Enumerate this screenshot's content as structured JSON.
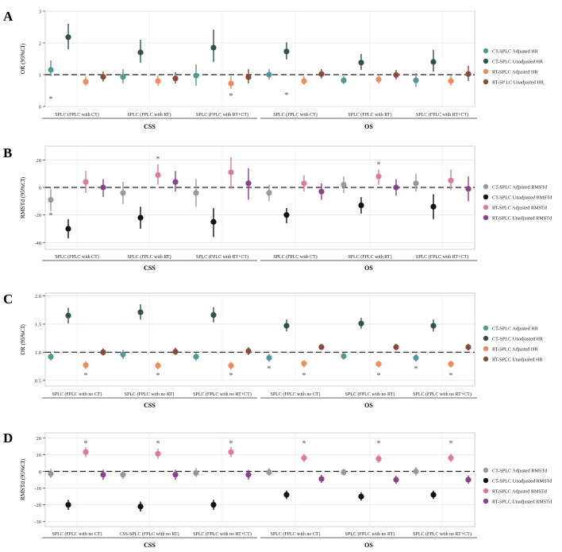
{
  "colors": {
    "ct_adj_hr": "#4f9a97",
    "ct_unadj_hr": "#2e5449",
    "rt_adj_hr": "#f08c5a",
    "rt_unadj_hr": "#8b4a36",
    "ct_adj_rmstd": "#999999",
    "ct_unadj_rmstd": "#111111",
    "rt_adj_rmstd": "#dd7b96",
    "rt_unadj_rmstd": "#8e3f8c"
  },
  "chart_data": [
    {
      "panel": "A",
      "type": "scatter",
      "ylabel": "OR (95%CI)",
      "ylim": [
        0,
        3
      ],
      "yticks": [
        0,
        1,
        2,
        3
      ],
      "reference_line": 1,
      "categories": [
        "SPLC (FPLC with CT)",
        "SPLC (FPLC with RT)",
        "SPLC (FPLC with RT+CT)",
        "SPLC (FPLC with CT)",
        "SPLC (FPLC with RT)",
        "SPLC (FPLC with RT+CT)"
      ],
      "groups": [
        {
          "label": "CSS",
          "categories": [
            0,
            1,
            2
          ]
        },
        {
          "label": "OS",
          "categories": [
            3,
            4,
            5
          ]
        }
      ],
      "series": [
        {
          "name": "CT-SPLC Adjusted HR",
          "color": "#4f9a97",
          "values": [
            1.15,
            0.93,
            0.97,
            1.0,
            0.82,
            0.82
          ],
          "lower": [
            0.95,
            0.72,
            0.65,
            0.85,
            0.7,
            0.62
          ],
          "upper": [
            1.45,
            1.18,
            1.32,
            1.18,
            0.95,
            1.05
          ]
        },
        {
          "name": "CT-SPLC Unadjusted HR",
          "color": "#2e5449",
          "values": [
            2.18,
            1.7,
            1.85,
            1.73,
            1.38,
            1.4
          ],
          "lower": [
            1.8,
            1.38,
            1.4,
            1.48,
            1.15,
            1.1
          ],
          "upper": [
            2.6,
            2.1,
            2.42,
            2.02,
            1.65,
            1.78
          ]
        },
        {
          "name": "RT-SPLC Adjusted HR",
          "color": "#f08c5a",
          "values": [
            0.78,
            0.8,
            0.72,
            0.8,
            0.85,
            0.8
          ],
          "lower": [
            0.65,
            0.65,
            0.55,
            0.68,
            0.72,
            0.65
          ],
          "upper": [
            0.95,
            0.98,
            0.95,
            0.95,
            1.0,
            0.98
          ]
        },
        {
          "name": "RT-SP LC Unadjusted HR",
          "color": "#8b4a36",
          "values": [
            0.93,
            0.88,
            0.92,
            1.02,
            0.99,
            1.02
          ],
          "lower": [
            0.78,
            0.72,
            0.72,
            0.88,
            0.85,
            0.8
          ],
          "upper": [
            1.1,
            1.08,
            1.18,
            1.18,
            1.15,
            1.28
          ]
        }
      ],
      "annotations": [
        {
          "text": "*",
          "category": 0,
          "series": 0,
          "y": 0.25
        },
        {
          "text": "*",
          "category": 2,
          "series": 2,
          "y": 0.35
        },
        {
          "text": "*",
          "category": 3,
          "series": 1,
          "y": 0.38
        }
      ],
      "legend": "right"
    },
    {
      "panel": "B",
      "type": "scatter",
      "ylabel": "RMSTd (95%CI)",
      "ylim": [
        -45,
        30
      ],
      "yticks": [
        -40,
        -20,
        0,
        20
      ],
      "reference_line": 0,
      "categories": [
        "SPLC (FPLC with CT)",
        "SPLC (FPLC with RT)",
        "SPLC (FPLC with RT+CT)",
        "SPLC (FPLC with CT)",
        "SPLC (FPLC with RT)",
        "SPLC (FPLC with RT+CT)"
      ],
      "groups": [
        {
          "label": "CSS",
          "categories": [
            0,
            1,
            2
          ]
        },
        {
          "label": "OS",
          "categories": [
            3,
            4,
            5
          ]
        }
      ],
      "series": [
        {
          "name": "CT-SPLC Adjusted RMSTd",
          "color": "#999999",
          "values": [
            -9,
            -4,
            -4,
            -4,
            2,
            3
          ],
          "lower": [
            -17,
            -12,
            -14,
            -10,
            -4,
            -3
          ],
          "upper": [
            -1,
            4,
            6,
            2,
            8,
            10
          ]
        },
        {
          "name": "CT-SPLC Unadjusted RMSTd",
          "color": "#111111",
          "values": [
            -30,
            -22,
            -25,
            -20,
            -13,
            -14
          ],
          "lower": [
            -37,
            -30,
            -36,
            -26,
            -19,
            -23
          ],
          "upper": [
            -23,
            -14,
            -15,
            -15,
            -7,
            -5
          ]
        },
        {
          "name": "RT-SPLC Adjusted RMSTd",
          "color": "#dd7b96",
          "values": [
            4,
            9,
            11,
            3,
            8,
            5
          ],
          "lower": [
            -4,
            2,
            -1,
            -3,
            2,
            -2
          ],
          "upper": [
            12,
            17,
            22,
            9,
            13,
            13
          ]
        },
        {
          "name": "RT-SPLC Unadjusted RMSTd",
          "color": "#8e3f8c",
          "values": [
            0,
            4,
            3,
            -3,
            0,
            -1
          ],
          "lower": [
            -7,
            -3,
            -9,
            -9,
            -6,
            -10
          ],
          "upper": [
            6,
            12,
            14,
            3,
            6,
            8
          ]
        }
      ],
      "annotations": [
        {
          "text": "*",
          "category": 0,
          "series": 0,
          "y": -20
        },
        {
          "text": "*",
          "category": 1,
          "series": 2,
          "y": 21
        },
        {
          "text": "*",
          "category": 4,
          "series": 2,
          "y": 17
        }
      ],
      "legend": "right"
    },
    {
      "panel": "C",
      "type": "scatter",
      "ylabel": "OR (95%CI)",
      "ylim": [
        0.4,
        2.05
      ],
      "yticks": [
        0.5,
        1.0,
        1.5,
        2.0
      ],
      "reference_line": 1,
      "categories": [
        "SPLC (FPLC with no CT)",
        "SPLC (FPLC with no RT)",
        "SPLC (FPLC with no RT+CT)",
        "SPLC (FPLC with no CT)",
        "SPLC (FPLC with no RT)",
        "SPLC (FPLC with no RT+CT)"
      ],
      "groups": [
        {
          "label": "CSS",
          "categories": [
            0,
            1,
            2
          ]
        },
        {
          "label": "OS",
          "categories": [
            3,
            4,
            5
          ]
        }
      ],
      "series": [
        {
          "name": "CT-SPLC Adjusted HR",
          "color": "#4f9a97",
          "values": [
            0.92,
            0.96,
            0.92,
            0.9,
            0.93,
            0.9
          ],
          "lower": [
            0.85,
            0.88,
            0.85,
            0.83,
            0.87,
            0.83
          ],
          "upper": [
            0.99,
            1.04,
            0.99,
            0.97,
            0.99,
            0.97
          ]
        },
        {
          "name": "CT-SPLC Unadjusted HR",
          "color": "#2e5449",
          "values": [
            1.65,
            1.71,
            1.66,
            1.47,
            1.51,
            1.47
          ],
          "lower": [
            1.51,
            1.58,
            1.53,
            1.37,
            1.42,
            1.37
          ],
          "upper": [
            1.79,
            1.85,
            1.8,
            1.58,
            1.61,
            1.58
          ]
        },
        {
          "name": "RT-SPLC Adjusted HR",
          "color": "#f08c5a",
          "values": [
            0.77,
            0.76,
            0.76,
            0.8,
            0.79,
            0.79
          ],
          "lower": [
            0.7,
            0.69,
            0.69,
            0.73,
            0.73,
            0.73
          ],
          "upper": [
            0.84,
            0.83,
            0.83,
            0.86,
            0.85,
            0.85
          ]
        },
        {
          "name": "RT-SPLC Unadjusted HR",
          "color": "#8b4a36",
          "values": [
            1.0,
            1.01,
            1.02,
            1.09,
            1.09,
            1.09
          ],
          "lower": [
            0.94,
            0.95,
            0.95,
            1.04,
            1.03,
            1.03
          ],
          "upper": [
            1.07,
            1.08,
            1.09,
            1.15,
            1.15,
            1.15
          ]
        }
      ],
      "annotations": [
        {
          "text": "*",
          "category": 0,
          "series": 2,
          "y": 0.6
        },
        {
          "text": "*",
          "category": 1,
          "series": 2,
          "y": 0.6
        },
        {
          "text": "*",
          "category": 2,
          "series": 2,
          "y": 0.6
        },
        {
          "text": "*",
          "category": 3,
          "series": 0,
          "y": 0.72
        },
        {
          "text": "*",
          "category": 3,
          "series": 2,
          "y": 0.6
        },
        {
          "text": "*",
          "category": 4,
          "series": 2,
          "y": 0.6
        },
        {
          "text": "*",
          "category": 5,
          "series": 0,
          "y": 0.72
        },
        {
          "text": "*",
          "category": 5,
          "series": 2,
          "y": 0.6
        }
      ],
      "legend": "right"
    },
    {
      "panel": "D",
      "type": "scatter",
      "ylabel": "RMSTd (95%CI)",
      "ylim": [
        -33,
        23
      ],
      "yticks": [
        -30,
        -20,
        -10,
        0,
        10,
        20
      ],
      "reference_line": 0,
      "categories": [
        "SPLC (FPLC with no CT)",
        "CSS-SPLC (FPLC with no RT)",
        "SPLC (FPLC with no RT+CT)",
        "SPLC (FPLC with no CT)",
        "SPLC (FPLC with no RT)",
        "SPLC (FPLC with no RT+CT)"
      ],
      "groups": [
        {
          "label": "CSS",
          "categories": [
            0,
            1,
            2
          ]
        },
        {
          "label": "OS",
          "categories": [
            3,
            4,
            5
          ]
        }
      ],
      "series": [
        {
          "name": "CT-SPLC Adjusted RMSTd",
          "color": "#999999",
          "values": [
            -1.5,
            -2,
            -1,
            -0.5,
            -0.5,
            0
          ],
          "lower": [
            -4,
            -4.5,
            -3.5,
            -2.5,
            -2.5,
            -2.5
          ],
          "upper": [
            1.5,
            0.5,
            2,
            2,
            1.5,
            2.5
          ]
        },
        {
          "name": "CT-SPLC Unadjusted RMSTd",
          "color": "#111111",
          "values": [
            -20,
            -21,
            -20,
            -14,
            -15,
            -14
          ],
          "lower": [
            -23,
            -24,
            -23,
            -16.5,
            -17.5,
            -16.5
          ],
          "upper": [
            -17,
            -18,
            -17,
            -11.5,
            -12.5,
            -11.5
          ]
        },
        {
          "name": "RT-SPLC Adjusted RMSTd",
          "color": "#dd7b96",
          "values": [
            11.5,
            10.5,
            11.5,
            8,
            7.5,
            8
          ],
          "lower": [
            8.5,
            7.5,
            8.5,
            5.5,
            5,
            5.5
          ],
          "upper": [
            14.5,
            13.5,
            14.5,
            10.5,
            10,
            10.5
          ]
        },
        {
          "name": "RT-SPLC Unadjusted RMSTd",
          "color": "#8e3f8c",
          "values": [
            -2,
            -2,
            -2,
            -4.5,
            -5,
            -5
          ],
          "lower": [
            -5,
            -5,
            -5,
            -7,
            -7.5,
            -7.5
          ],
          "upper": [
            1,
            1,
            1,
            -2,
            -2.5,
            -2.5
          ]
        }
      ],
      "annotations": [
        {
          "text": "*",
          "category": 0,
          "series": 2,
          "y": 17
        },
        {
          "text": "*",
          "category": 1,
          "series": 2,
          "y": 17
        },
        {
          "text": "*",
          "category": 2,
          "series": 2,
          "y": 17
        },
        {
          "text": "*",
          "category": 3,
          "series": 2,
          "y": 17
        },
        {
          "text": "*",
          "category": 4,
          "series": 2,
          "y": 17
        },
        {
          "text": "*",
          "category": 5,
          "series": 2,
          "y": 17
        }
      ],
      "legend": "right"
    }
  ]
}
